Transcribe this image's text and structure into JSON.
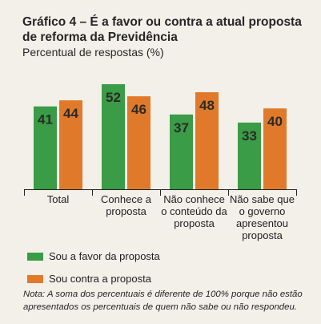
{
  "header": {
    "title": "Gráfico 4 – É a favor ou contra a atual proposta de reforma da Previdência",
    "subtitle": "Percentual de respostas (%)"
  },
  "chart_data": {
    "type": "bar",
    "title": "Gráfico 4 – É a favor ou contra a atual proposta de reforma da Previdência",
    "subtitle": "Percentual de respostas (%)",
    "categories": [
      [
        "Total"
      ],
      [
        "Conhece a",
        "proposta"
      ],
      [
        "Não conhece",
        "o conteúdo da",
        "proposta"
      ],
      [
        "Não sabe que",
        "o governo",
        "apresentou",
        "proposta"
      ]
    ],
    "series": [
      {
        "name": "Sou a favor da proposta",
        "values": [
          41,
          52,
          37,
          33
        ],
        "color": "#3a9c46"
      },
      {
        "name": "Sou contra a proposta",
        "values": [
          44,
          46,
          48,
          40
        ],
        "color": "#e07a2a"
      }
    ],
    "ylim": [
      0,
      60
    ],
    "grid": false,
    "legend_position": "bottom-left"
  },
  "note": "Nota: A soma dos percentuais é diferente de 100% porque não estão apresentados os percentuais de quem não sabe ou não respondeu."
}
